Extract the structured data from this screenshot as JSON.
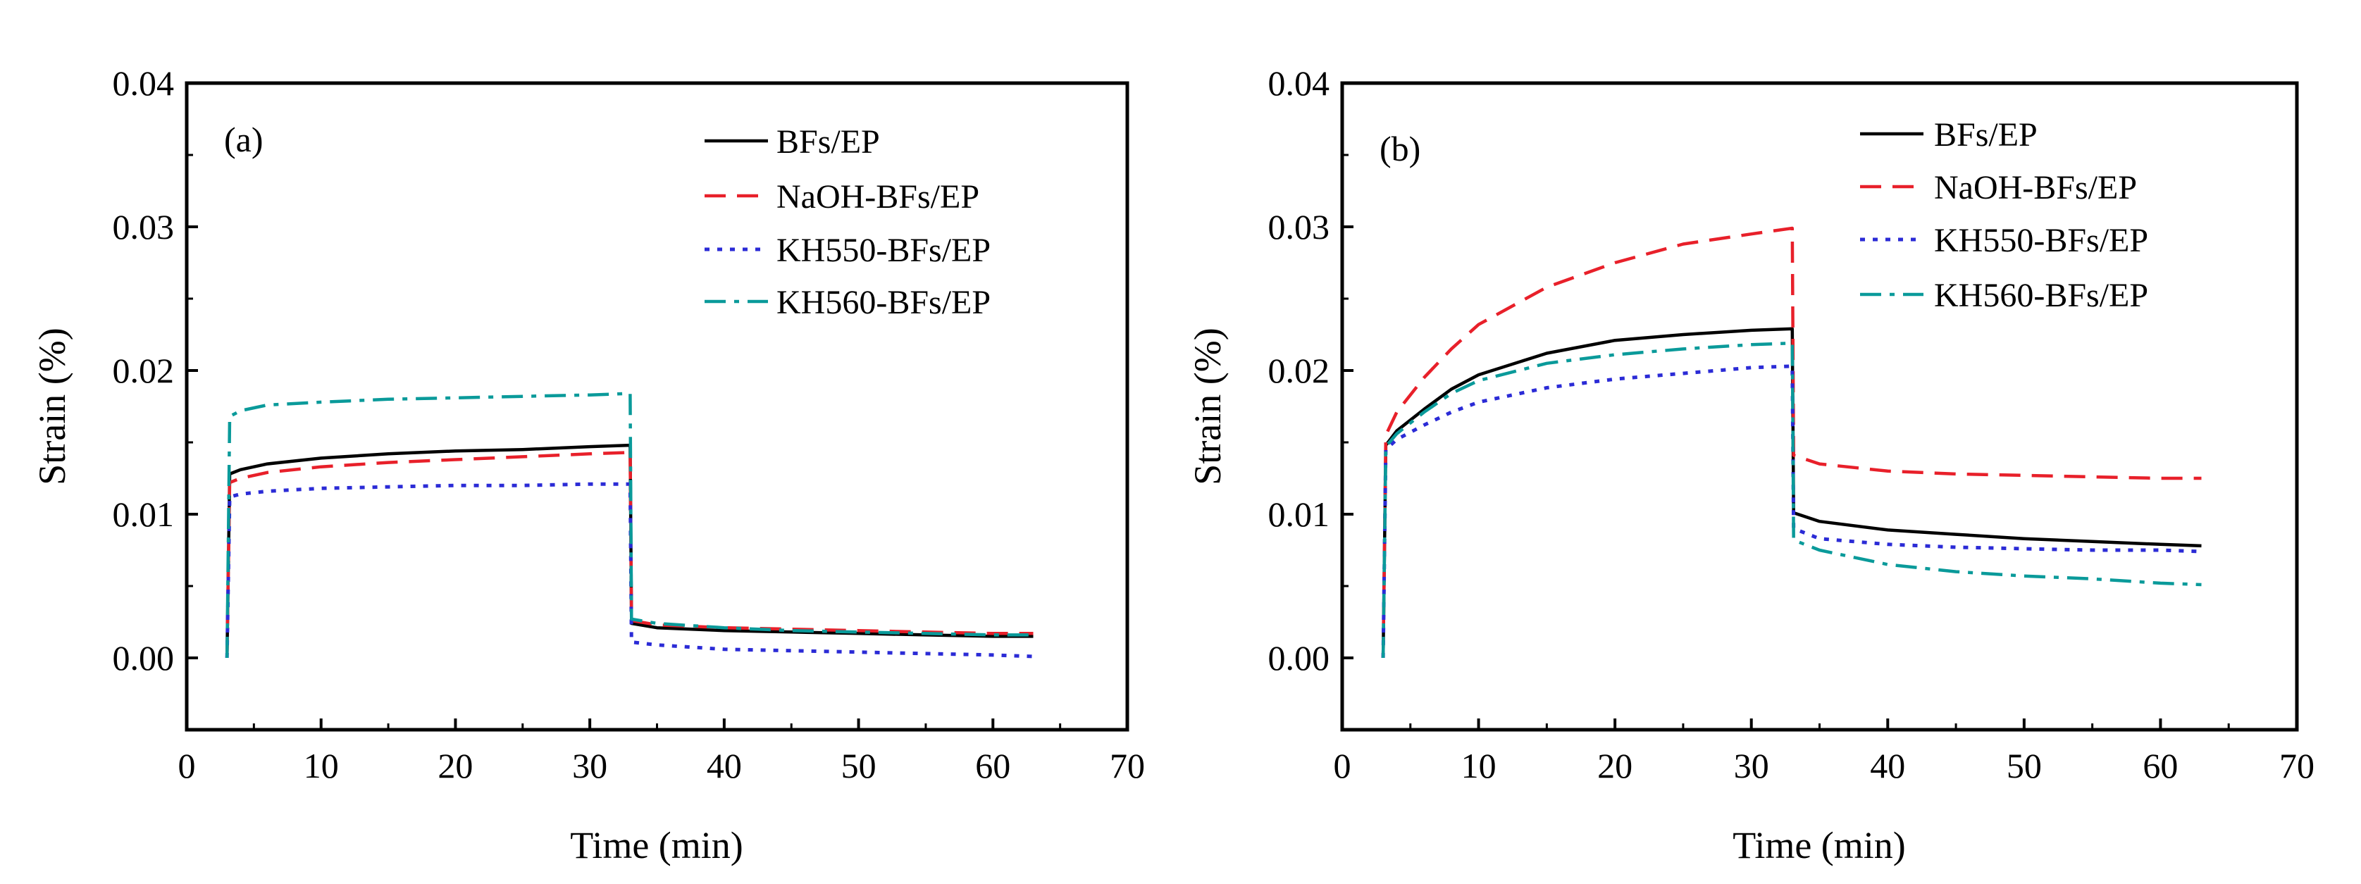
{
  "colors": {
    "BFs/EP": "#000000",
    "NaOH-BFs/EP": "#e8202a",
    "KH550-BFs/EP": "#2b2bd6",
    "KH560-BFs/EP": "#0a9a9a"
  },
  "chart_data": [
    {
      "type": "line",
      "panel_label": "(a)",
      "xlabel": "Time (min)",
      "ylabel": "Strain (%)",
      "xlim": [
        0,
        70
      ],
      "ylim": [
        -0.005,
        0.04
      ],
      "xticks": [
        "0",
        "10",
        "20",
        "30",
        "40",
        "50",
        "60",
        "70"
      ],
      "yticks": [
        "0.00",
        "0.01",
        "0.02",
        "0.03",
        "0.04"
      ],
      "legend_position": "top-right",
      "series": [
        {
          "name": "BFs/EP",
          "style": "solid",
          "x": [
            3,
            3.2,
            4,
            6,
            10,
            15,
            20,
            25,
            30,
            33,
            33.1,
            35,
            40,
            45,
            50,
            55,
            60,
            63
          ],
          "y": [
            0,
            0.0128,
            0.0131,
            0.0135,
            0.0139,
            0.0142,
            0.0144,
            0.0145,
            0.0147,
            0.0148,
            0.0024,
            0.0021,
            0.0019,
            0.0018,
            0.0017,
            0.0016,
            0.0015,
            0.0015
          ]
        },
        {
          "name": "NaOH-BFs/EP",
          "style": "dashed",
          "x": [
            3,
            3.2,
            4,
            6,
            10,
            15,
            20,
            25,
            30,
            33,
            33.1,
            35,
            40,
            45,
            50,
            55,
            60,
            63
          ],
          "y": [
            0,
            0.0122,
            0.0125,
            0.0129,
            0.0133,
            0.0136,
            0.0138,
            0.014,
            0.0142,
            0.0143,
            0.0026,
            0.0023,
            0.0021,
            0.002,
            0.0019,
            0.0018,
            0.0017,
            0.0017
          ]
        },
        {
          "name": "KH550-BFs/EP",
          "style": "dotted",
          "x": [
            3,
            3.2,
            4,
            6,
            10,
            15,
            20,
            25,
            30,
            33,
            33.1,
            35,
            40,
            45,
            50,
            55,
            60,
            63
          ],
          "y": [
            0,
            0.0112,
            0.0114,
            0.0116,
            0.0118,
            0.0119,
            0.012,
            0.012,
            0.0121,
            0.0121,
            0.0011,
            0.0009,
            0.0006,
            0.0005,
            0.0004,
            0.0003,
            0.0002,
            0.0001
          ]
        },
        {
          "name": "KH560-BFs/EP",
          "style": "dashdot",
          "x": [
            3,
            3.2,
            4,
            6,
            10,
            15,
            20,
            25,
            30,
            33,
            33.1,
            35,
            40,
            45,
            50,
            55,
            60,
            63
          ],
          "y": [
            0,
            0.0168,
            0.0172,
            0.0176,
            0.0178,
            0.018,
            0.0181,
            0.0182,
            0.0183,
            0.0184,
            0.0027,
            0.0024,
            0.0021,
            0.0019,
            0.0018,
            0.0017,
            0.0016,
            0.0016
          ]
        }
      ]
    },
    {
      "type": "line",
      "panel_label": "(b)",
      "xlabel": "Time (min)",
      "ylabel": "Strain (%)",
      "xlim": [
        0,
        70
      ],
      "ylim": [
        -0.005,
        0.04
      ],
      "xticks": [
        "0",
        "10",
        "20",
        "30",
        "40",
        "50",
        "60",
        "70"
      ],
      "yticks": [
        "0.00",
        "0.01",
        "0.02",
        "0.03",
        "0.04"
      ],
      "legend_position": "top-right",
      "series": [
        {
          "name": "BFs/EP",
          "style": "solid",
          "x": [
            3,
            3.2,
            4,
            6,
            8,
            10,
            15,
            20,
            25,
            30,
            33,
            33.1,
            35,
            40,
            45,
            50,
            55,
            60,
            63
          ],
          "y": [
            0,
            0.0148,
            0.0158,
            0.0173,
            0.0187,
            0.0197,
            0.0212,
            0.0221,
            0.0225,
            0.0228,
            0.0229,
            0.0101,
            0.0095,
            0.0089,
            0.0086,
            0.0083,
            0.0081,
            0.0079,
            0.0078
          ]
        },
        {
          "name": "NaOH-BFs/EP",
          "style": "dashed",
          "x": [
            3,
            3.2,
            4,
            6,
            8,
            10,
            15,
            20,
            25,
            30,
            33,
            33.1,
            35,
            40,
            45,
            50,
            55,
            60,
            63
          ],
          "y": [
            0,
            0.0155,
            0.0171,
            0.0195,
            0.0215,
            0.0232,
            0.0258,
            0.0275,
            0.0288,
            0.0295,
            0.0299,
            0.0141,
            0.0135,
            0.013,
            0.0128,
            0.0127,
            0.0126,
            0.0125,
            0.0125
          ]
        },
        {
          "name": "KH550-BFs/EP",
          "style": "dotted",
          "x": [
            3,
            3.2,
            4,
            6,
            8,
            10,
            15,
            20,
            25,
            30,
            33,
            33.1,
            35,
            40,
            45,
            50,
            55,
            60,
            63
          ],
          "y": [
            0,
            0.0145,
            0.0152,
            0.0162,
            0.0171,
            0.0178,
            0.0188,
            0.0194,
            0.0198,
            0.0202,
            0.0203,
            0.009,
            0.0083,
            0.0079,
            0.0077,
            0.0076,
            0.0075,
            0.0075,
            0.0074
          ]
        },
        {
          "name": "KH560-BFs/EP",
          "style": "dashdot",
          "x": [
            3,
            3.2,
            4,
            6,
            8,
            10,
            15,
            20,
            25,
            30,
            33,
            33.1,
            35,
            40,
            45,
            50,
            55,
            60,
            63
          ],
          "y": [
            0,
            0.0147,
            0.0156,
            0.0171,
            0.0184,
            0.0193,
            0.0205,
            0.0211,
            0.0215,
            0.0218,
            0.0219,
            0.0082,
            0.0075,
            0.0065,
            0.006,
            0.0057,
            0.0055,
            0.0052,
            0.0051
          ]
        }
      ]
    }
  ]
}
